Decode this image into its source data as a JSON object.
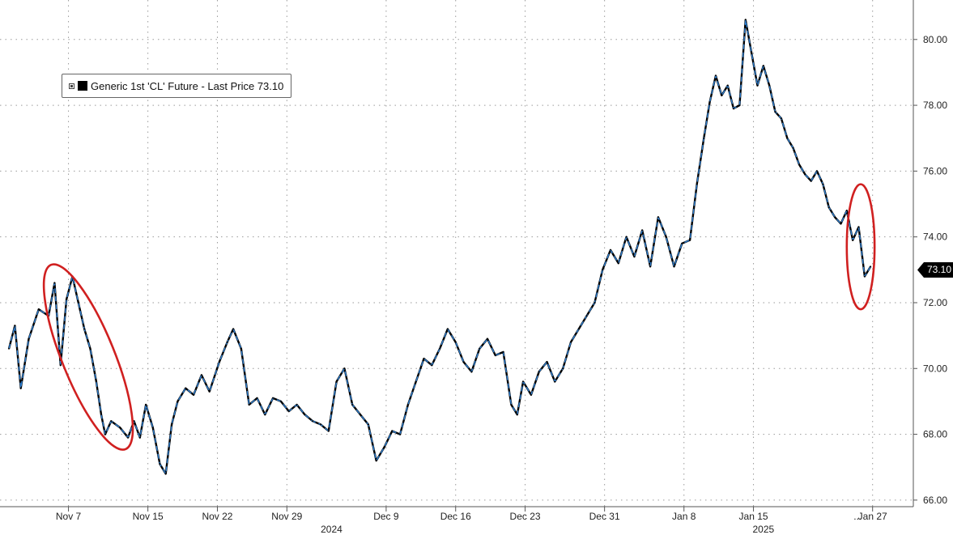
{
  "chart_data": {
    "type": "line",
    "title": "",
    "xlabel": "",
    "ylabel": "",
    "legend": {
      "label": "Generic 1st 'CL' Future - Last Price 73.10",
      "placement": "top-left"
    },
    "last_price_label": "73.10",
    "last_price": 73.1,
    "ylim": [
      65.8,
      81.2
    ],
    "y_ticks": [
      {
        "value": 66,
        "label": "66.00"
      },
      {
        "value": 68,
        "label": "68.00"
      },
      {
        "value": 70,
        "label": "70.00"
      },
      {
        "value": 72,
        "label": "72.00"
      },
      {
        "value": 74,
        "label": "74.00"
      },
      {
        "value": 76,
        "label": "76.00"
      },
      {
        "value": 78,
        "label": "78.00"
      },
      {
        "value": 80,
        "label": "80.00"
      }
    ],
    "x_ticks": [
      {
        "t": 6,
        "label": "Nov 7"
      },
      {
        "t": 14,
        "label": "Nov 15"
      },
      {
        "t": 21,
        "label": "Nov 22"
      },
      {
        "t": 28,
        "label": "Nov 29"
      },
      {
        "t": 38,
        "label": "Dec 9"
      },
      {
        "t": 45,
        "label": "Dec 16"
      },
      {
        "t": 52,
        "label": "Dec 23"
      },
      {
        "t": 60,
        "label": "Dec 31"
      },
      {
        "t": 68,
        "label": "Jan 8"
      },
      {
        "t": 75,
        "label": "Jan 15"
      },
      {
        "t": 87,
        "label": "Jan 27"
      }
    ],
    "x_gap_marker": {
      "t": 85.5,
      "label": "..."
    },
    "year_labels": [
      {
        "t": 32.5,
        "label": "2024"
      },
      {
        "t": 76,
        "label": "2025"
      }
    ],
    "x_domain": [
      0,
      92
    ],
    "grid": true,
    "series": [
      {
        "name": "Generic 1st 'CL' Future - Last Price",
        "points": [
          [
            0,
            70.6
          ],
          [
            0.6,
            71.3
          ],
          [
            1.2,
            69.4
          ],
          [
            2,
            70.9
          ],
          [
            3,
            71.8
          ],
          [
            4,
            71.6
          ],
          [
            4.6,
            72.6
          ],
          [
            5.2,
            70.1
          ],
          [
            5.8,
            72.1
          ],
          [
            6.4,
            72.8
          ],
          [
            7,
            72.0
          ],
          [
            7.6,
            71.2
          ],
          [
            8.2,
            70.6
          ],
          [
            8.8,
            69.6
          ],
          [
            9.3,
            68.6
          ],
          [
            9.7,
            68.0
          ],
          [
            10.3,
            68.4
          ],
          [
            11.2,
            68.2
          ],
          [
            12,
            67.9
          ],
          [
            12.6,
            68.4
          ],
          [
            13.2,
            67.9
          ],
          [
            13.8,
            68.9
          ],
          [
            14.5,
            68.2
          ],
          [
            15.2,
            67.1
          ],
          [
            15.8,
            66.8
          ],
          [
            16.4,
            68.3
          ],
          [
            17,
            69.0
          ],
          [
            17.8,
            69.4
          ],
          [
            18.6,
            69.2
          ],
          [
            19.4,
            69.8
          ],
          [
            20.2,
            69.3
          ],
          [
            21.2,
            70.2
          ],
          [
            22,
            70.8
          ],
          [
            22.6,
            71.2
          ],
          [
            23.4,
            70.6
          ],
          [
            24.2,
            68.9
          ],
          [
            25,
            69.1
          ],
          [
            25.8,
            68.6
          ],
          [
            26.6,
            69.1
          ],
          [
            27.4,
            69.0
          ],
          [
            28.2,
            68.7
          ],
          [
            29,
            68.9
          ],
          [
            29.8,
            68.6
          ],
          [
            30.6,
            68.4
          ],
          [
            31.4,
            68.3
          ],
          [
            32.2,
            68.1
          ],
          [
            33,
            69.6
          ],
          [
            33.8,
            70.0
          ],
          [
            34.6,
            68.9
          ],
          [
            35.4,
            68.6
          ],
          [
            36.2,
            68.3
          ],
          [
            37,
            67.2
          ],
          [
            37.8,
            67.6
          ],
          [
            38.6,
            68.1
          ],
          [
            39.4,
            68.0
          ],
          [
            40.2,
            68.9
          ],
          [
            41,
            69.6
          ],
          [
            41.8,
            70.3
          ],
          [
            42.6,
            70.1
          ],
          [
            43.4,
            70.6
          ],
          [
            44.2,
            71.2
          ],
          [
            45,
            70.8
          ],
          [
            45.8,
            70.2
          ],
          [
            46.6,
            69.9
          ],
          [
            47.4,
            70.6
          ],
          [
            48.2,
            70.9
          ],
          [
            49,
            70.4
          ],
          [
            49.8,
            70.5
          ],
          [
            50.6,
            68.9
          ],
          [
            51.2,
            68.6
          ],
          [
            51.8,
            69.6
          ],
          [
            52.6,
            69.2
          ],
          [
            53.4,
            69.9
          ],
          [
            54.2,
            70.2
          ],
          [
            55,
            69.6
          ],
          [
            55.8,
            70.0
          ],
          [
            56.6,
            70.8
          ],
          [
            57.4,
            71.2
          ],
          [
            58.2,
            71.6
          ],
          [
            59,
            72.0
          ],
          [
            59.8,
            73.0
          ],
          [
            60.6,
            73.6
          ],
          [
            61.4,
            73.2
          ],
          [
            62.2,
            74.0
          ],
          [
            63,
            73.4
          ],
          [
            63.8,
            74.2
          ],
          [
            64.6,
            73.1
          ],
          [
            65.4,
            74.6
          ],
          [
            66.2,
            74.0
          ],
          [
            67,
            73.1
          ],
          [
            67.8,
            73.8
          ],
          [
            68.6,
            73.9
          ],
          [
            69.3,
            75.6
          ],
          [
            70,
            77.0
          ],
          [
            70.6,
            78.1
          ],
          [
            71.2,
            78.9
          ],
          [
            71.8,
            78.3
          ],
          [
            72.4,
            78.6
          ],
          [
            73,
            77.9
          ],
          [
            73.6,
            78.0
          ],
          [
            74.2,
            80.6
          ],
          [
            74.8,
            79.6
          ],
          [
            75.4,
            78.6
          ],
          [
            76,
            79.2
          ],
          [
            76.6,
            78.6
          ],
          [
            77.2,
            77.8
          ],
          [
            77.8,
            77.6
          ],
          [
            78.4,
            77.0
          ],
          [
            79,
            76.7
          ],
          [
            79.6,
            76.2
          ],
          [
            80.2,
            75.9
          ],
          [
            80.8,
            75.7
          ],
          [
            81.4,
            76.0
          ],
          [
            82,
            75.6
          ],
          [
            82.6,
            74.9
          ],
          [
            83.2,
            74.6
          ],
          [
            83.8,
            74.4
          ],
          [
            84.4,
            74.8
          ],
          [
            85,
            73.9
          ],
          [
            85.6,
            74.3
          ],
          [
            86.2,
            72.8
          ],
          [
            86.8,
            73.1
          ]
        ]
      }
    ],
    "annotations": [
      {
        "type": "ellipse",
        "color": "#d02020",
        "around": {
          "t": [
            5.5,
            10.5
          ],
          "y": [
            67.5,
            73.2
          ]
        }
      },
      {
        "type": "ellipse",
        "color": "#d02020",
        "around": {
          "t": [
            84.4,
            87.2
          ],
          "y": [
            71.8,
            75.6
          ]
        }
      }
    ]
  },
  "colors": {
    "line_primary": "#000000",
    "line_overlay": "#2f7fd0",
    "grid": "#9a9a9a",
    "annotation": "#d02020",
    "tag_bg": "#000000",
    "tag_text": "#ffffff"
  }
}
